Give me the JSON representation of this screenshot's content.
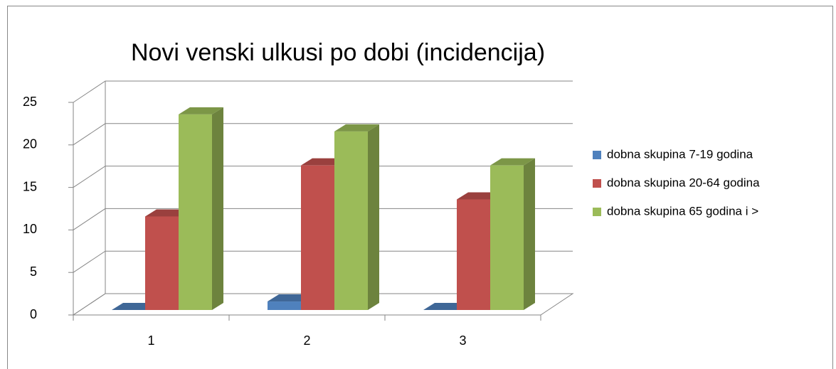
{
  "chart_data": {
    "type": "bar3d",
    "title": "Novi venski ulkusi po dobi (incidencija)",
    "categories": [
      "1",
      "2",
      "3"
    ],
    "series": [
      {
        "name": "dobna skupina 7-19 godina",
        "color": "#4f81bd",
        "values": [
          0,
          1,
          0
        ]
      },
      {
        "name": "dobna skupina 20-64 godina",
        "color": "#c0504d",
        "values": [
          11,
          17,
          13
        ]
      },
      {
        "name": "dobna skupina 65 godina i >",
        "color": "#9bbb59",
        "values": [
          23,
          21,
          17
        ]
      }
    ],
    "ylim": [
      0,
      25
    ],
    "yticks": [
      0,
      5,
      10,
      15,
      20,
      25
    ],
    "grid": true,
    "legend": "right"
  }
}
